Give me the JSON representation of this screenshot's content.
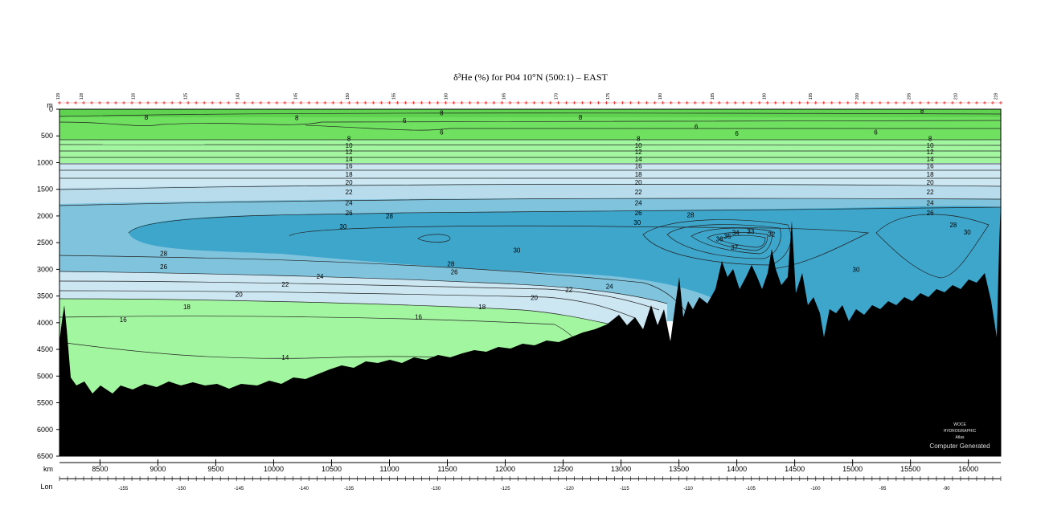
{
  "chart_data": {
    "type": "heatmap",
    "title": "δ³He (%) for P04 10°N (500:1) – EAST",
    "y_unit": "m",
    "x_unit": "km",
    "lon_label": "Lon",
    "xlim": [
      8150,
      16280
    ],
    "ylim": [
      6500,
      0
    ],
    "x_ticks": [
      8500,
      9000,
      9500,
      10000,
      10500,
      11000,
      11500,
      12000,
      12500,
      13000,
      13500,
      14000,
      14500,
      15000,
      15500,
      16000
    ],
    "y_ticks": [
      0,
      500,
      1000,
      1500,
      2000,
      2500,
      3000,
      3500,
      4000,
      4500,
      5000,
      5500,
      6000,
      6500
    ],
    "lon_ticks": [
      {
        "km": 8700,
        "label": "-155"
      },
      {
        "km": 9200,
        "label": "-150"
      },
      {
        "km": 9700,
        "label": "-145"
      },
      {
        "km": 10260,
        "label": "-140"
      },
      {
        "km": 10650,
        "label": "-135"
      },
      {
        "km": 11400,
        "label": "-130"
      },
      {
        "km": 12000,
        "label": "-125"
      },
      {
        "km": 12550,
        "label": "-120"
      },
      {
        "km": 13030,
        "label": "-115"
      },
      {
        "km": 13580,
        "label": "-110"
      },
      {
        "km": 14120,
        "label": "-105"
      },
      {
        "km": 14680,
        "label": "-100"
      },
      {
        "km": 15260,
        "label": "-95"
      },
      {
        "km": 15810,
        "label": "-90"
      }
    ],
    "station_labels": [
      {
        "km": 8150,
        "label": "129"
      },
      {
        "km": 8350,
        "label": "128"
      },
      {
        "km": 8800,
        "label": "126"
      },
      {
        "km": 9250,
        "label": "125"
      },
      {
        "km": 9700,
        "label": "140"
      },
      {
        "km": 10200,
        "label": "145"
      },
      {
        "km": 10650,
        "label": "150"
      },
      {
        "km": 11050,
        "label": "155"
      },
      {
        "km": 11500,
        "label": "160"
      },
      {
        "km": 12000,
        "label": "165"
      },
      {
        "km": 12450,
        "label": "170"
      },
      {
        "km": 12900,
        "label": "175"
      },
      {
        "km": 13350,
        "label": "180"
      },
      {
        "km": 13800,
        "label": "185"
      },
      {
        "km": 14250,
        "label": "190"
      },
      {
        "km": 14650,
        "label": "195"
      },
      {
        "km": 15050,
        "label": "200"
      },
      {
        "km": 15500,
        "label": "205"
      },
      {
        "km": 15900,
        "label": "210"
      },
      {
        "km": 16250,
        "label": "219"
      }
    ],
    "contour_levels": [
      6,
      8,
      10,
      12,
      14,
      16,
      18,
      20,
      22,
      24,
      26,
      28,
      30,
      32,
      33,
      35,
      36,
      37
    ],
    "colors": {
      "green_dark": "#6fe05f",
      "green_light": "#a3f6a0",
      "blue_pale": "#cde7f2",
      "blue_mid": "#7fc3dd",
      "blue_deep": "#3ea5cb",
      "bathymetry": "#000000"
    },
    "contour_labels": [
      {
        "x": 8900,
        "y": 150,
        "v": "8"
      },
      {
        "x": 10200,
        "y": 160,
        "v": "8"
      },
      {
        "x": 11450,
        "y": 70,
        "v": "8"
      },
      {
        "x": 11130,
        "y": 210,
        "v": "6"
      },
      {
        "x": 11450,
        "y": 430,
        "v": "6"
      },
      {
        "x": 12650,
        "y": 150,
        "v": "8"
      },
      {
        "x": 13650,
        "y": 320,
        "v": "6"
      },
      {
        "x": 14000,
        "y": 450,
        "v": "6"
      },
      {
        "x": 15200,
        "y": 430,
        "v": "6"
      },
      {
        "x": 15600,
        "y": 30,
        "v": "8"
      },
      {
        "x": 10650,
        "y": 550,
        "v": "8"
      },
      {
        "x": 10650,
        "y": 680,
        "v": "10"
      },
      {
        "x": 10650,
        "y": 800,
        "v": "12"
      },
      {
        "x": 10650,
        "y": 930,
        "v": "14"
      },
      {
        "x": 10650,
        "y": 1060,
        "v": "16"
      },
      {
        "x": 10650,
        "y": 1220,
        "v": "18"
      },
      {
        "x": 10650,
        "y": 1370,
        "v": "20"
      },
      {
        "x": 10650,
        "y": 1550,
        "v": "22"
      },
      {
        "x": 10650,
        "y": 1750,
        "v": "24"
      },
      {
        "x": 10650,
        "y": 1940,
        "v": "26"
      },
      {
        "x": 13150,
        "y": 550,
        "v": "8"
      },
      {
        "x": 13150,
        "y": 680,
        "v": "10"
      },
      {
        "x": 13150,
        "y": 800,
        "v": "12"
      },
      {
        "x": 13150,
        "y": 930,
        "v": "14"
      },
      {
        "x": 13150,
        "y": 1060,
        "v": "16"
      },
      {
        "x": 13150,
        "y": 1220,
        "v": "18"
      },
      {
        "x": 13150,
        "y": 1370,
        "v": "20"
      },
      {
        "x": 13150,
        "y": 1550,
        "v": "22"
      },
      {
        "x": 13150,
        "y": 1750,
        "v": "24"
      },
      {
        "x": 13150,
        "y": 1940,
        "v": "26"
      },
      {
        "x": 15670,
        "y": 550,
        "v": "8"
      },
      {
        "x": 15670,
        "y": 680,
        "v": "10"
      },
      {
        "x": 15670,
        "y": 800,
        "v": "12"
      },
      {
        "x": 15670,
        "y": 930,
        "v": "14"
      },
      {
        "x": 15670,
        "y": 1060,
        "v": "16"
      },
      {
        "x": 15670,
        "y": 1220,
        "v": "18"
      },
      {
        "x": 15670,
        "y": 1370,
        "v": "20"
      },
      {
        "x": 15670,
        "y": 1550,
        "v": "22"
      },
      {
        "x": 15670,
        "y": 1750,
        "v": "24"
      },
      {
        "x": 15670,
        "y": 1940,
        "v": "26"
      },
      {
        "x": 11000,
        "y": 2000,
        "v": "28"
      },
      {
        "x": 10600,
        "y": 2200,
        "v": "30"
      },
      {
        "x": 13140,
        "y": 2120,
        "v": "30"
      },
      {
        "x": 13600,
        "y": 1980,
        "v": "28"
      },
      {
        "x": 15870,
        "y": 2170,
        "v": "28"
      },
      {
        "x": 15990,
        "y": 2300,
        "v": "30"
      },
      {
        "x": 12100,
        "y": 2640,
        "v": "30"
      },
      {
        "x": 14300,
        "y": 2340,
        "v": "32"
      },
      {
        "x": 14120,
        "y": 2290,
        "v": "33"
      },
      {
        "x": 13990,
        "y": 2310,
        "v": "34"
      },
      {
        "x": 13920,
        "y": 2380,
        "v": "35"
      },
      {
        "x": 13850,
        "y": 2430,
        "v": "36"
      },
      {
        "x": 13980,
        "y": 2590,
        "v": "37"
      },
      {
        "x": 15030,
        "y": 3000,
        "v": "30"
      },
      {
        "x": 9050,
        "y": 2700,
        "v": "28"
      },
      {
        "x": 9050,
        "y": 2950,
        "v": "26"
      },
      {
        "x": 11530,
        "y": 2900,
        "v": "28"
      },
      {
        "x": 11560,
        "y": 3050,
        "v": "26"
      },
      {
        "x": 10400,
        "y": 3130,
        "v": "24"
      },
      {
        "x": 10100,
        "y": 3280,
        "v": "22"
      },
      {
        "x": 9700,
        "y": 3470,
        "v": "20"
      },
      {
        "x": 9250,
        "y": 3700,
        "v": "18"
      },
      {
        "x": 8700,
        "y": 3940,
        "v": "16"
      },
      {
        "x": 11250,
        "y": 3890,
        "v": "16"
      },
      {
        "x": 11800,
        "y": 3700,
        "v": "18"
      },
      {
        "x": 12250,
        "y": 3530,
        "v": "20"
      },
      {
        "x": 12550,
        "y": 3380,
        "v": "22"
      },
      {
        "x": 12900,
        "y": 3320,
        "v": "24"
      },
      {
        "x": 10100,
        "y": 4650,
        "v": "14"
      }
    ]
  },
  "watermark": {
    "line1": "WOCE",
    "line2": "HYDROGRAPHIC",
    "line3": "Atlas",
    "line4": "Computer Generated"
  }
}
